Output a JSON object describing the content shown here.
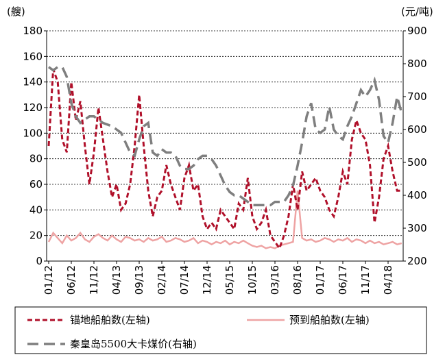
{
  "chart_data": {
    "type": "line",
    "y_unit": "(艘)",
    "y2_unit": "(元/吨)",
    "categories": [
      "01/12",
      null,
      null,
      null,
      null,
      "06/12",
      null,
      null,
      null,
      null,
      "11/12",
      null,
      null,
      null,
      null,
      "04/13",
      null,
      null,
      null,
      null,
      "09/13",
      null,
      null,
      null,
      null,
      "02/14",
      null,
      null,
      null,
      null,
      "07/14",
      null,
      null,
      null,
      null,
      "12/14",
      null,
      null,
      null,
      null,
      "05/15",
      null,
      null,
      null,
      null,
      "10/15",
      null,
      null,
      null,
      null,
      "03/16",
      null,
      null,
      null,
      null,
      "08/16",
      null,
      null,
      null,
      null,
      "01/17",
      null,
      null,
      null,
      null,
      "06/17",
      null,
      null,
      null,
      null,
      "11/17",
      null,
      null,
      null,
      null,
      "04/18",
      null,
      null,
      null
    ],
    "series": [
      {
        "name": "锚地船舶数(左轴)",
        "color": "#b0102a",
        "dash": "7,4",
        "width": 3,
        "values": [
          90,
          150,
          140,
          95,
          85,
          140,
          110,
          125,
          90,
          60,
          85,
          120,
          95,
          70,
          50,
          60,
          40,
          45,
          60,
          90,
          130,
          90,
          55,
          35,
          50,
          55,
          75,
          60,
          50,
          40,
          65,
          75,
          55,
          60,
          35,
          25,
          30,
          25,
          40,
          35,
          30,
          25,
          45,
          40,
          65,
          35,
          25,
          30,
          40,
          20,
          15,
          10,
          20,
          35,
          60,
          40,
          70,
          55,
          60,
          65,
          55,
          50,
          40,
          35,
          50,
          70,
          60,
          95,
          110,
          100,
          95,
          75,
          30,
          50,
          80,
          90,
          70,
          55,
          55
        ]
      },
      {
        "name": "预到船舶数(左轴)",
        "color": "#eea3a3",
        "dash": "",
        "width": 2.5,
        "values": [
          15,
          22,
          18,
          14,
          20,
          16,
          18,
          22,
          17,
          15,
          19,
          21,
          18,
          16,
          20,
          17,
          15,
          19,
          18,
          16,
          17,
          15,
          18,
          16,
          17,
          19,
          15,
          16,
          18,
          17,
          15,
          16,
          18,
          14,
          16,
          15,
          13,
          15,
          14,
          16,
          13,
          15,
          14,
          16,
          14,
          12,
          11,
          12,
          10,
          11,
          10,
          12,
          13,
          14,
          15,
          55,
          18,
          16,
          17,
          15,
          16,
          18,
          17,
          15,
          17,
          16,
          18,
          15,
          17,
          16,
          14,
          16,
          14,
          15,
          13,
          14,
          15,
          13,
          14
        ]
      },
      {
        "name": "秦皇岛5500大卡煤价(右轴)",
        "color": "#7f7f7f",
        "dash": "16,8",
        "width": 3.5,
        "axis": "y2",
        "values": [
          790,
          780,
          790,
          790,
          760,
          680,
          640,
          620,
          630,
          640,
          640,
          630,
          620,
          615,
          610,
          600,
          590,
          560,
          530,
          520,
          570,
          610,
          620,
          530,
          520,
          540,
          530,
          530,
          520,
          490,
          480,
          480,
          490,
          510,
          520,
          520,
          510,
          490,
          460,
          430,
          410,
          400,
          400,
          390,
          380,
          370,
          370,
          370,
          370,
          370,
          380,
          380,
          380,
          400,
          430,
          490,
          560,
          640,
          680,
          600,
          590,
          600,
          670,
          600,
          580,
          570,
          610,
          640,
          680,
          720,
          700,
          720,
          750,
          690,
          580,
          560,
          620,
          700,
          650
        ]
      }
    ],
    "ylim": [
      0,
      180
    ],
    "yticks": [
      0,
      20,
      40,
      60,
      80,
      100,
      120,
      140,
      160,
      180
    ],
    "y2lim": [
      200,
      900
    ],
    "y2ticks": [
      200,
      300,
      400,
      500,
      600,
      700,
      800,
      900
    ],
    "grid": true
  }
}
